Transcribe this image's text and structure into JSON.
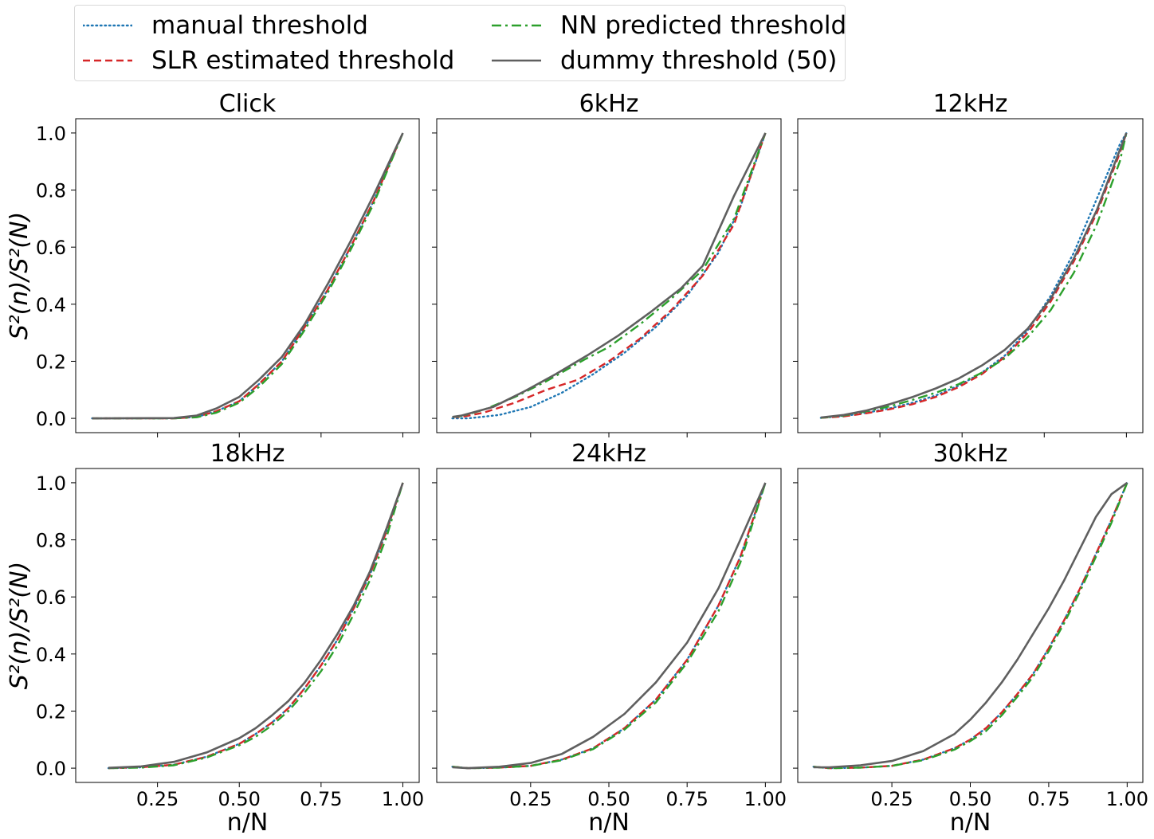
{
  "legend": {
    "manual": "manual threshold",
    "slr": "SLR estimated threshold",
    "nn": "NN predicted threshold",
    "dummy": "dummy threshold (50)"
  },
  "colors": {
    "manual": "#1f77b4",
    "slr": "#d62728",
    "nn": "#2ca02c",
    "dummy": "#5f5f5f"
  },
  "axis_labels": {
    "ylabel": "S²(n)/S²(N)",
    "xlabel": "n/N"
  },
  "chart_data": [
    {
      "type": "line",
      "title": "Click",
      "xlim": [
        0.0,
        1.05
      ],
      "ylim": [
        -0.05,
        1.05
      ],
      "xticks": [
        0.25,
        0.5,
        0.75,
        1.0
      ],
      "yticks": [
        0.0,
        0.2,
        0.4,
        0.6,
        0.8,
        1.0
      ],
      "xlabel": "",
      "ylabel": "S²(n)/S²(N)",
      "series": [
        {
          "name": "manual threshold",
          "x": [
            0.05,
            0.3,
            0.37,
            0.43,
            0.5,
            0.56,
            0.63,
            0.7,
            0.77,
            0.84,
            0.91,
            1.0
          ],
          "y": [
            0.0,
            0.0,
            0.005,
            0.025,
            0.06,
            0.12,
            0.2,
            0.32,
            0.45,
            0.6,
            0.76,
            1.0
          ]
        },
        {
          "name": "SLR estimated threshold",
          "x": [
            0.05,
            0.3,
            0.37,
            0.43,
            0.5,
            0.56,
            0.63,
            0.7,
            0.77,
            0.84,
            0.91,
            1.0
          ],
          "y": [
            0.0,
            0.0,
            0.005,
            0.025,
            0.06,
            0.12,
            0.2,
            0.32,
            0.45,
            0.6,
            0.76,
            1.0
          ]
        },
        {
          "name": "NN predicted threshold",
          "x": [
            0.05,
            0.3,
            0.37,
            0.43,
            0.5,
            0.56,
            0.63,
            0.7,
            0.77,
            0.84,
            0.91,
            1.0
          ],
          "y": [
            0.0,
            0.0,
            0.004,
            0.02,
            0.055,
            0.11,
            0.19,
            0.31,
            0.44,
            0.59,
            0.75,
            1.0
          ]
        },
        {
          "name": "dummy threshold (50)",
          "x": [
            0.05,
            0.3,
            0.37,
            0.43,
            0.5,
            0.56,
            0.63,
            0.7,
            0.77,
            0.84,
            0.91,
            1.0
          ],
          "y": [
            0.0,
            0.001,
            0.01,
            0.035,
            0.075,
            0.135,
            0.215,
            0.33,
            0.47,
            0.62,
            0.78,
            1.0
          ]
        }
      ]
    },
    {
      "type": "line",
      "title": "6kHz",
      "xlim": [
        -0.05,
        1.05
      ],
      "ylim": [
        -0.05,
        1.05
      ],
      "xticks": [
        0.25,
        0.5,
        0.75,
        1.0
      ],
      "yticks": [
        0.0,
        0.2,
        0.4,
        0.6,
        0.8,
        1.0
      ],
      "xlabel": "",
      "ylabel": "",
      "series": [
        {
          "name": "manual threshold",
          "x": [
            0.0,
            0.05,
            0.15,
            0.25,
            0.35,
            0.45,
            0.55,
            0.65,
            0.75,
            0.85,
            0.92,
            1.0
          ],
          "y": [
            0.0,
            0.0,
            0.012,
            0.04,
            0.09,
            0.155,
            0.23,
            0.32,
            0.43,
            0.58,
            0.74,
            1.0
          ]
        },
        {
          "name": "SLR estimated threshold",
          "x": [
            0.0,
            0.03,
            0.1,
            0.2,
            0.3,
            0.4,
            0.5,
            0.6,
            0.7,
            0.8,
            0.9,
            1.0
          ],
          "y": [
            0.005,
            0.005,
            0.02,
            0.055,
            0.1,
            0.135,
            0.2,
            0.28,
            0.38,
            0.5,
            0.68,
            1.0
          ]
        },
        {
          "name": "NN predicted threshold",
          "x": [
            0.0,
            0.03,
            0.1,
            0.2,
            0.3,
            0.42,
            0.5,
            0.6,
            0.7,
            0.8,
            0.9,
            1.0
          ],
          "y": [
            0.005,
            0.008,
            0.03,
            0.075,
            0.13,
            0.205,
            0.25,
            0.33,
            0.42,
            0.52,
            0.7,
            1.0
          ]
        },
        {
          "name": "dummy threshold (50)",
          "x": [
            0.0,
            0.03,
            0.13,
            0.23,
            0.33,
            0.43,
            0.53,
            0.63,
            0.73,
            0.8,
            0.9,
            1.0
          ],
          "y": [
            0.005,
            0.01,
            0.04,
            0.095,
            0.155,
            0.22,
            0.29,
            0.37,
            0.455,
            0.535,
            0.78,
            1.0
          ]
        }
      ]
    },
    {
      "type": "line",
      "title": "12kHz",
      "xlim": [
        0.0,
        1.05
      ],
      "ylim": [
        -0.05,
        1.05
      ],
      "xticks": [
        0.25,
        0.5,
        0.75,
        1.0
      ],
      "yticks": [
        0.0,
        0.2,
        0.4,
        0.6,
        0.8,
        1.0
      ],
      "xlabel": "",
      "ylabel": "",
      "series": [
        {
          "name": "manual threshold",
          "x": [
            0.07,
            0.14,
            0.21,
            0.28,
            0.35,
            0.42,
            0.49,
            0.56,
            0.63,
            0.7,
            0.77,
            0.84,
            0.91,
            0.98,
            1.0
          ],
          "y": [
            0.002,
            0.008,
            0.02,
            0.035,
            0.055,
            0.08,
            0.115,
            0.16,
            0.22,
            0.31,
            0.43,
            0.58,
            0.77,
            0.96,
            1.0
          ]
        },
        {
          "name": "SLR estimated threshold",
          "x": [
            0.07,
            0.14,
            0.21,
            0.28,
            0.35,
            0.42,
            0.49,
            0.56,
            0.63,
            0.7,
            0.77,
            0.84,
            0.91,
            0.98,
            1.0
          ],
          "y": [
            0.002,
            0.007,
            0.018,
            0.032,
            0.05,
            0.075,
            0.11,
            0.155,
            0.215,
            0.3,
            0.41,
            0.55,
            0.72,
            0.93,
            1.0
          ]
        },
        {
          "name": "NN predicted threshold",
          "x": [
            0.07,
            0.14,
            0.21,
            0.28,
            0.35,
            0.42,
            0.49,
            0.56,
            0.63,
            0.7,
            0.77,
            0.84,
            0.91,
            0.98,
            1.0
          ],
          "y": [
            0.002,
            0.01,
            0.025,
            0.042,
            0.065,
            0.09,
            0.12,
            0.16,
            0.21,
            0.285,
            0.38,
            0.51,
            0.68,
            0.9,
            1.0
          ]
        },
        {
          "name": "dummy threshold (50)",
          "x": [
            0.07,
            0.14,
            0.21,
            0.28,
            0.35,
            0.42,
            0.49,
            0.56,
            0.63,
            0.7,
            0.77,
            0.84,
            0.91,
            0.98,
            1.0
          ],
          "y": [
            0.003,
            0.012,
            0.028,
            0.05,
            0.075,
            0.105,
            0.14,
            0.185,
            0.24,
            0.315,
            0.42,
            0.56,
            0.73,
            0.94,
            1.0
          ]
        }
      ]
    },
    {
      "type": "line",
      "title": "18kHz",
      "xlim": [
        0.0,
        1.05
      ],
      "ylim": [
        -0.05,
        1.05
      ],
      "xticks": [
        0.25,
        0.5,
        0.75,
        1.0
      ],
      "yticks": [
        0.0,
        0.2,
        0.4,
        0.6,
        0.8,
        1.0
      ],
      "xlabel": "n/N",
      "ylabel": "S²(n)/S²(N)",
      "series": [
        {
          "name": "manual threshold",
          "x": [
            0.1,
            0.2,
            0.3,
            0.4,
            0.5,
            0.55,
            0.6,
            0.65,
            0.7,
            0.75,
            0.8,
            0.85,
            0.9,
            0.95,
            1.0
          ],
          "y": [
            0.0,
            0.003,
            0.012,
            0.04,
            0.085,
            0.12,
            0.16,
            0.21,
            0.28,
            0.36,
            0.45,
            0.56,
            0.68,
            0.83,
            1.0
          ]
        },
        {
          "name": "SLR estimated threshold",
          "x": [
            0.1,
            0.2,
            0.3,
            0.4,
            0.5,
            0.55,
            0.6,
            0.65,
            0.7,
            0.75,
            0.8,
            0.85,
            0.9,
            0.95,
            1.0
          ],
          "y": [
            0.0,
            0.003,
            0.012,
            0.04,
            0.085,
            0.12,
            0.16,
            0.21,
            0.28,
            0.36,
            0.45,
            0.56,
            0.68,
            0.83,
            1.0
          ]
        },
        {
          "name": "NN predicted threshold",
          "x": [
            0.1,
            0.2,
            0.3,
            0.4,
            0.5,
            0.55,
            0.6,
            0.65,
            0.7,
            0.75,
            0.8,
            0.85,
            0.9,
            0.95,
            1.0
          ],
          "y": [
            0.0,
            0.002,
            0.01,
            0.037,
            0.08,
            0.11,
            0.15,
            0.2,
            0.265,
            0.34,
            0.43,
            0.54,
            0.66,
            0.81,
            1.0
          ]
        },
        {
          "name": "dummy threshold (50)",
          "x": [
            0.1,
            0.2,
            0.3,
            0.4,
            0.5,
            0.55,
            0.6,
            0.65,
            0.7,
            0.75,
            0.8,
            0.85,
            0.9,
            0.95,
            1.0
          ],
          "y": [
            0.001,
            0.006,
            0.022,
            0.055,
            0.105,
            0.14,
            0.185,
            0.235,
            0.3,
            0.38,
            0.47,
            0.57,
            0.69,
            0.84,
            1.0
          ]
        }
      ]
    },
    {
      "type": "line",
      "title": "24kHz",
      "xlim": [
        -0.05,
        1.05
      ],
      "ylim": [
        -0.05,
        1.05
      ],
      "xticks": [
        0.25,
        0.5,
        0.75,
        1.0
      ],
      "yticks": [
        0.0,
        0.2,
        0.4,
        0.6,
        0.8,
        1.0
      ],
      "xlabel": "n/N",
      "ylabel": "",
      "series": [
        {
          "name": "manual threshold",
          "x": [
            0.0,
            0.05,
            0.15,
            0.25,
            0.35,
            0.45,
            0.55,
            0.65,
            0.75,
            0.85,
            0.92,
            1.0
          ],
          "y": [
            0.005,
            0.0,
            0.002,
            0.008,
            0.03,
            0.07,
            0.14,
            0.24,
            0.38,
            0.57,
            0.74,
            1.0
          ]
        },
        {
          "name": "SLR estimated threshold",
          "x": [
            0.0,
            0.05,
            0.15,
            0.25,
            0.35,
            0.45,
            0.55,
            0.65,
            0.75,
            0.85,
            0.92,
            1.0
          ],
          "y": [
            0.005,
            0.0,
            0.002,
            0.008,
            0.03,
            0.07,
            0.14,
            0.24,
            0.38,
            0.57,
            0.74,
            1.0
          ]
        },
        {
          "name": "NN predicted threshold",
          "x": [
            0.0,
            0.05,
            0.15,
            0.25,
            0.35,
            0.45,
            0.55,
            0.65,
            0.75,
            0.85,
            0.92,
            1.0
          ],
          "y": [
            0.005,
            0.0,
            0.002,
            0.008,
            0.028,
            0.067,
            0.135,
            0.23,
            0.37,
            0.55,
            0.72,
            1.0
          ]
        },
        {
          "name": "dummy threshold (50)",
          "x": [
            0.0,
            0.05,
            0.15,
            0.25,
            0.35,
            0.45,
            0.55,
            0.65,
            0.75,
            0.85,
            0.92,
            1.0
          ],
          "y": [
            0.003,
            0.0,
            0.005,
            0.018,
            0.05,
            0.11,
            0.19,
            0.3,
            0.44,
            0.63,
            0.8,
            1.0
          ]
        }
      ]
    },
    {
      "type": "line",
      "title": "30kHz",
      "xlim": [
        -0.05,
        1.05
      ],
      "ylim": [
        -0.05,
        1.05
      ],
      "xticks": [
        0.25,
        0.5,
        0.75,
        1.0
      ],
      "yticks": [
        0.0,
        0.2,
        0.4,
        0.6,
        0.8,
        1.0
      ],
      "xlabel": "n/N",
      "ylabel": "",
      "series": [
        {
          "name": "manual threshold",
          "x": [
            0.0,
            0.05,
            0.15,
            0.25,
            0.35,
            0.45,
            0.5,
            0.55,
            0.6,
            0.65,
            0.7,
            0.75,
            0.8,
            0.85,
            0.9,
            0.95,
            1.0
          ],
          "y": [
            0.005,
            0.0,
            0.002,
            0.008,
            0.03,
            0.07,
            0.1,
            0.14,
            0.195,
            0.26,
            0.33,
            0.42,
            0.52,
            0.63,
            0.75,
            0.87,
            1.0
          ]
        },
        {
          "name": "SLR estimated threshold",
          "x": [
            0.0,
            0.05,
            0.15,
            0.25,
            0.35,
            0.45,
            0.5,
            0.55,
            0.6,
            0.65,
            0.7,
            0.75,
            0.8,
            0.85,
            0.9,
            0.95,
            1.0
          ],
          "y": [
            0.005,
            0.0,
            0.002,
            0.008,
            0.03,
            0.07,
            0.1,
            0.14,
            0.195,
            0.26,
            0.33,
            0.42,
            0.52,
            0.63,
            0.75,
            0.87,
            1.0
          ]
        },
        {
          "name": "NN predicted threshold",
          "x": [
            0.0,
            0.05,
            0.15,
            0.25,
            0.35,
            0.45,
            0.5,
            0.55,
            0.6,
            0.65,
            0.7,
            0.75,
            0.8,
            0.85,
            0.9,
            0.95,
            1.0
          ],
          "y": [
            0.005,
            0.0,
            0.002,
            0.008,
            0.028,
            0.065,
            0.095,
            0.13,
            0.185,
            0.25,
            0.32,
            0.41,
            0.51,
            0.62,
            0.74,
            0.86,
            1.0
          ]
        },
        {
          "name": "dummy threshold (50)",
          "x": [
            0.0,
            0.05,
            0.15,
            0.25,
            0.35,
            0.45,
            0.5,
            0.55,
            0.6,
            0.65,
            0.7,
            0.75,
            0.8,
            0.85,
            0.9,
            0.95,
            1.0
          ],
          "y": [
            0.003,
            0.003,
            0.01,
            0.025,
            0.06,
            0.12,
            0.17,
            0.23,
            0.3,
            0.38,
            0.47,
            0.56,
            0.66,
            0.77,
            0.88,
            0.96,
            1.0
          ]
        }
      ]
    }
  ]
}
